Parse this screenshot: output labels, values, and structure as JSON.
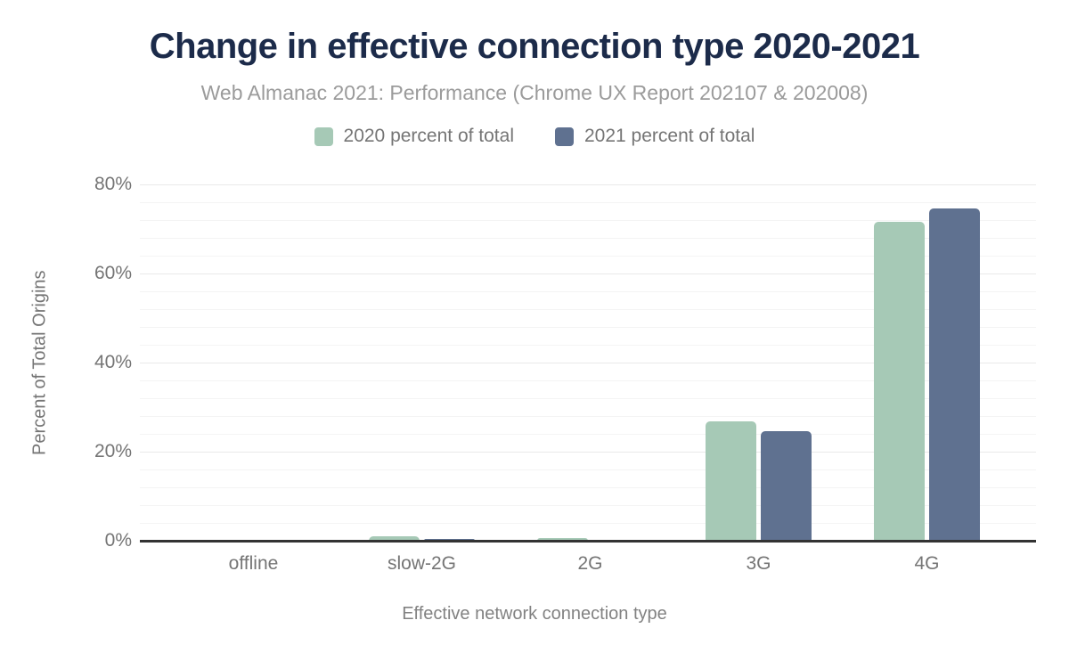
{
  "chart_data": {
    "type": "bar",
    "title": "Change in effective connection type 2020-2021",
    "subtitle": "Web Almanac 2021: Performance (Chrome UX Report 202107 & 202008)",
    "categories": [
      "offline",
      "slow-2G",
      "2G",
      "3G",
      "4G"
    ],
    "series": [
      {
        "name": "2020 percent of total",
        "color": "#a6c9b6",
        "values": [
          0.0,
          1.0,
          0.6,
          26.8,
          71.7
        ]
      },
      {
        "name": "2021 percent of total",
        "color": "#5f7190",
        "values": [
          0.0,
          0.5,
          0.1,
          24.6,
          74.7
        ]
      }
    ],
    "xlabel": "Effective network connection type",
    "ylabel": "Percent of Total Origins",
    "ylim": [
      0,
      80
    ],
    "yticks": [
      {
        "value": 0,
        "label": "0%"
      },
      {
        "value": 20,
        "label": "20%"
      },
      {
        "value": 40,
        "label": "40%"
      },
      {
        "value": 60,
        "label": "60%"
      },
      {
        "value": 80,
        "label": "80%"
      }
    ],
    "minor_gridline_step": 4,
    "major_gridline_step": 20,
    "grid": true,
    "legend_position": "top"
  },
  "colors": {
    "background": "#ffffff",
    "title_text": "#1c2b4a",
    "subtitle_text": "#9b9b9b",
    "axis_text": "#757575",
    "axis_line": "#333333",
    "gridline_minor": "#f4f4f4",
    "gridline_major": "#e9e9e9",
    "series_2020": "#a6c9b6",
    "series_2021": "#5f7190"
  }
}
